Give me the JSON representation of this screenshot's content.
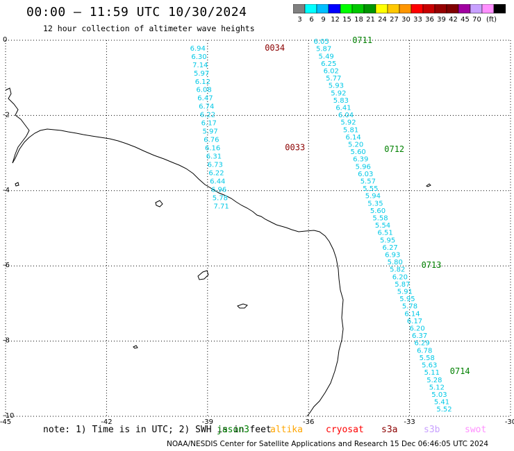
{
  "header": {
    "title": "00:00 – 11:59 UTC 10/30/2024",
    "subtitle": "12 hour collection of altimeter wave heights"
  },
  "legend": {
    "unit": "(ft)",
    "bins": [
      {
        "label": "3",
        "color": "#808080"
      },
      {
        "label": "6",
        "color": "#00ffff"
      },
      {
        "label": "9",
        "color": "#00bfff"
      },
      {
        "label": "12",
        "color": "#0000ff"
      },
      {
        "label": "15",
        "color": "#00ff00"
      },
      {
        "label": "18",
        "color": "#00c800"
      },
      {
        "label": "21",
        "color": "#009600"
      },
      {
        "label": "24",
        "color": "#ffff00"
      },
      {
        "label": "27",
        "color": "#ffc800"
      },
      {
        "label": "30",
        "color": "#ff9600"
      },
      {
        "label": "33",
        "color": "#ff0000"
      },
      {
        "label": "36",
        "color": "#c80000"
      },
      {
        "label": "39",
        "color": "#960000"
      },
      {
        "label": "42",
        "color": "#800000"
      },
      {
        "label": "45",
        "color": "#a000a0"
      },
      {
        "label": "70",
        "color": "#c8a0ff"
      },
      {
        "label": "",
        "color": "#ff90ff"
      },
      {
        "label": "",
        "color": "#000000"
      }
    ]
  },
  "map": {
    "lon_range": [
      -45,
      -30
    ],
    "lat_range": [
      -10,
      0
    ],
    "x_ticks": [
      "-45",
      "-42",
      "-39",
      "-36",
      "-33",
      "-30"
    ],
    "y_ticks": [
      "0",
      "-2",
      "-4",
      "-6",
      "-8",
      "-10"
    ],
    "grid": "dotted",
    "value_color": "#00c8e6",
    "tracks": [
      {
        "values": [
          "6.94",
          "6.30",
          "7.14",
          "5.97",
          "6.12",
          "6.08",
          "6.47",
          "6.74",
          "6.22",
          "6.17",
          "5.97",
          "6.76",
          "6.16",
          "6.31",
          "6.73",
          "6.22",
          "6.44",
          "6.96",
          "5.78",
          "7.71"
        ],
        "start_lon": -39.52,
        "start_lat": -0.2,
        "end_lon": -38.82,
        "end_lat": -4.4
      },
      {
        "values": [
          "6.05",
          "5.87",
          "5.49",
          "6.25",
          "6.02",
          "5.77",
          "5.93",
          "5.92",
          "5.83",
          "6.41",
          "6.04",
          "5.92",
          "5.81",
          "6.14",
          "5.20",
          "5.60",
          "6.39",
          "5.96",
          "6.03",
          "5.57",
          "5.55",
          "5.94",
          "5.35",
          "5.60",
          "5.58",
          "5.54",
          "6.51",
          "5.95",
          "6.27",
          "6.93",
          "5.80",
          "5.82",
          "6.20",
          "5.87",
          "5.91",
          "5.95",
          "5.78",
          "6.14",
          "6.17",
          "6.20",
          "6.37",
          "6.29",
          "6.78",
          "5.58",
          "5.63",
          "5.11",
          "5.28",
          "5.12",
          "5.03",
          "5.41",
          "5.52"
        ],
        "start_lon": -35.85,
        "start_lat": -0.02,
        "end_lon": -32.2,
        "end_lat": -9.8
      }
    ],
    "time_labels": [
      {
        "text": "0034",
        "lon": -37.3,
        "lat": -0.2,
        "color": "#8b0000"
      },
      {
        "text": "0033",
        "lon": -36.7,
        "lat": -2.85,
        "color": "#8b0000"
      },
      {
        "text": "0711",
        "lon": -34.7,
        "lat": 0.0,
        "color": "#008000"
      },
      {
        "text": "0712",
        "lon": -33.75,
        "lat": -2.9,
        "color": "#008000"
      },
      {
        "text": "0713",
        "lon": -32.65,
        "lat": -5.98,
        "color": "#008000"
      },
      {
        "text": "0714",
        "lon": -31.8,
        "lat": -8.8,
        "color": "#008000"
      }
    ]
  },
  "note": "note: 1) Time is in UTC; 2) SWH is in feet",
  "satellites": [
    {
      "name": "jason3",
      "color": "#008000"
    },
    {
      "name": "altika",
      "color": "#ffa500"
    },
    {
      "name": "cryosat",
      "color": "#ff0000"
    },
    {
      "name": "s3a",
      "color": "#8b0000"
    },
    {
      "name": "s3b",
      "color": "#c8a0ff"
    },
    {
      "name": "swot",
      "color": "#ff90ff"
    }
  ],
  "footer": "NOAA/NESDIS Center for Satellite Applications and Research   15 Dec 06:46:05 UTC 2024"
}
